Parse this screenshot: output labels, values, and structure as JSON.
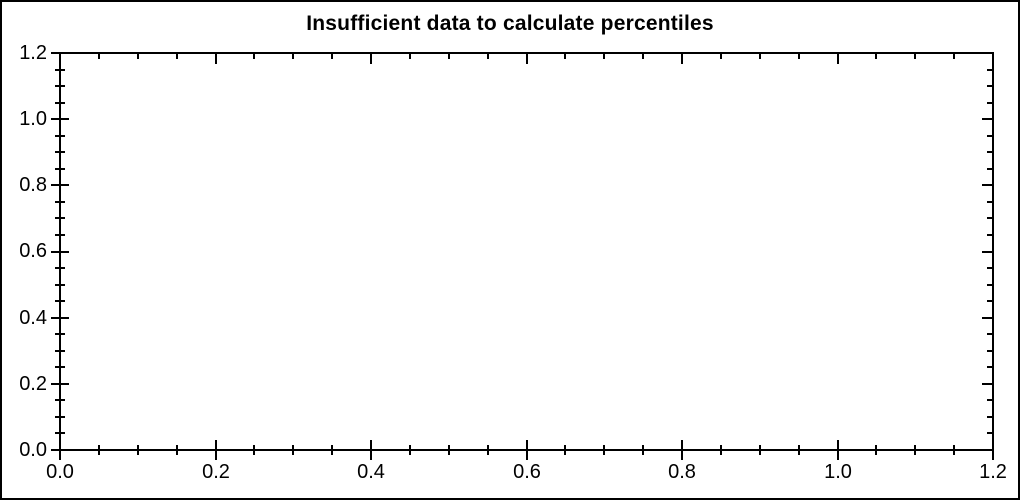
{
  "chart_data": {
    "type": "scatter",
    "title": "Insufficient data to calculate percentiles",
    "series": [],
    "plot_area_empty": true,
    "grid": false,
    "legend_position": "none",
    "x_axis": {
      "label": "",
      "min": 0.0,
      "max": 1.2,
      "major_tick_step": 0.2,
      "minor_tick_step": 0.05,
      "tick_labels": [
        "0.0",
        "0.2",
        "0.4",
        "0.6",
        "0.8",
        "1.0",
        "1.2"
      ]
    },
    "y_axis": {
      "label": "",
      "min": 0.0,
      "max": 1.2,
      "major_tick_step": 0.2,
      "minor_tick_step": 0.05,
      "tick_labels": [
        "0.0",
        "0.2",
        "0.4",
        "0.6",
        "0.8",
        "1.0",
        "1.2"
      ]
    },
    "style": {
      "background_color": "#ffffff",
      "axis_color": "#000000",
      "text_color": "#000000",
      "tick_style_left_bottom": "cross",
      "tick_style_top_right": "inward"
    }
  }
}
